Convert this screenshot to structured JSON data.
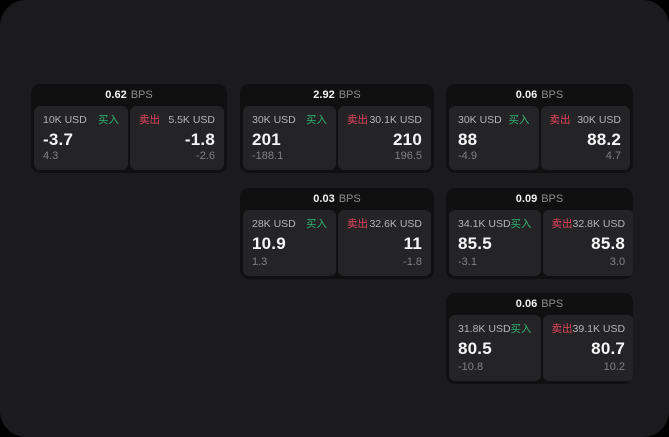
{
  "page": {
    "outside_bg": "#000000",
    "panel_bg": "#1b1b1d",
    "card_bg": "#101011",
    "tile_bg": "#242427"
  },
  "colors": {
    "buy_green": "#30b274",
    "sell_red": "#e8435a",
    "price_white": "#f5f5f5",
    "label_gray": "#b4b4b4",
    "muted_gray": "#818181"
  },
  "bps_unit": "BPS",
  "buy_label": "买入",
  "sell_label": "卖出",
  "cards": [
    {
      "bps_value": "0.62",
      "buy": {
        "amount": "10K USD",
        "side": "买入",
        "price": "-3.7",
        "delta": "4.3"
      },
      "sell": {
        "amount": "5.5K USD",
        "side": "卖出",
        "price": "-1.8",
        "delta": "-2.6"
      }
    },
    {
      "bps_value": "2.92",
      "buy": {
        "amount": "30K USD",
        "side": "买入",
        "price": "201",
        "delta": "-188.1"
      },
      "sell": {
        "amount": "30.1K USD",
        "side": "卖出",
        "price": "210",
        "delta": "196.5"
      }
    },
    {
      "bps_value": "0.06",
      "buy": {
        "amount": "30K USD",
        "side": "买入",
        "price": "88",
        "delta": "-4.9"
      },
      "sell": {
        "amount": "30K USD",
        "side": "卖出",
        "price": "88.2",
        "delta": "4.7"
      }
    },
    {
      "bps_value": "0.03",
      "buy": {
        "amount": "28K USD",
        "side": "买入",
        "price": "10.9",
        "delta": "1.3"
      },
      "sell": {
        "amount": "32.6K USD",
        "side": "卖出",
        "price": "11",
        "delta": "-1.8"
      }
    },
    {
      "bps_value": "0.09",
      "buy": {
        "amount": "34.1K USD",
        "side": "买入",
        "price": "85.5",
        "delta": "-3.1"
      },
      "sell": {
        "amount": "32.8K USD",
        "side": "卖出",
        "price": "85.8",
        "delta": "3.0"
      }
    },
    {
      "bps_value": "0.06",
      "buy": {
        "amount": "31.8K USD",
        "side": "买入",
        "price": "80.5",
        "delta": "-10.8"
      },
      "sell": {
        "amount": "39.1K USD",
        "side": "卖出",
        "price": "80.7",
        "delta": "10.2"
      }
    }
  ]
}
